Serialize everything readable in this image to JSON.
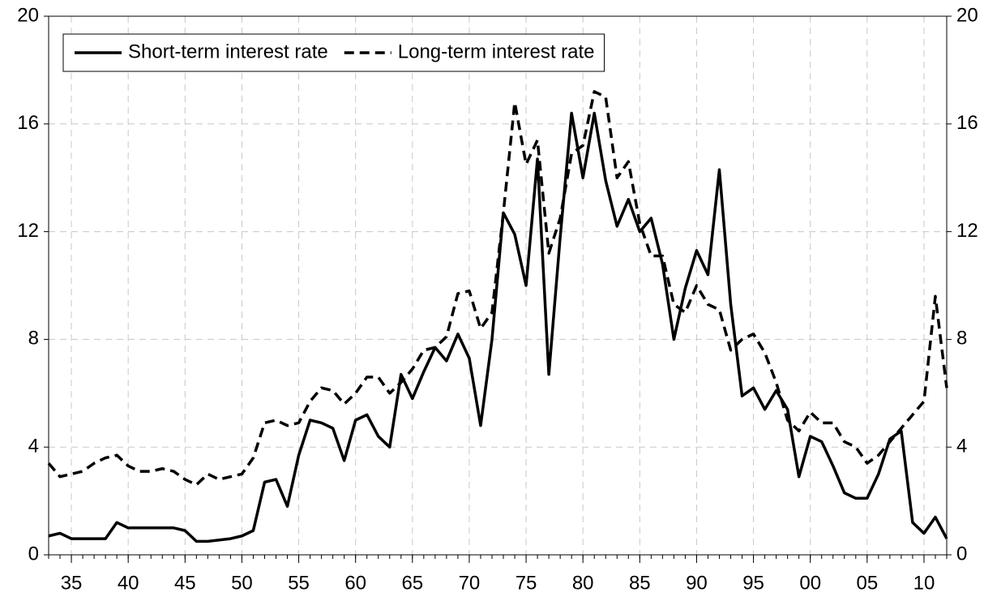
{
  "chart_data": {
    "type": "line",
    "x": [
      1933,
      1934,
      1935,
      1936,
      1937,
      1938,
      1939,
      1940,
      1941,
      1942,
      1943,
      1944,
      1945,
      1946,
      1947,
      1948,
      1949,
      1950,
      1951,
      1952,
      1953,
      1954,
      1955,
      1956,
      1957,
      1958,
      1959,
      1960,
      1961,
      1962,
      1963,
      1964,
      1965,
      1966,
      1967,
      1968,
      1969,
      1970,
      1971,
      1972,
      1973,
      1974,
      1975,
      1976,
      1977,
      1978,
      1979,
      1980,
      1981,
      1982,
      1983,
      1984,
      1985,
      1986,
      1987,
      1988,
      1989,
      1990,
      1991,
      1992,
      1993,
      1994,
      1995,
      1996,
      1997,
      1998,
      1999,
      2000,
      2001,
      2002,
      2003,
      2004,
      2005,
      2006,
      2007,
      2008,
      2009,
      2010,
      2011,
      2012
    ],
    "series": [
      {
        "name": "Short-term interest rate",
        "color": "#000000",
        "dash": "solid",
        "values": [
          0.7,
          0.8,
          0.6,
          0.6,
          0.6,
          0.6,
          1.2,
          1.0,
          1.0,
          1.0,
          1.0,
          1.0,
          0.9,
          0.5,
          0.5,
          0.55,
          0.6,
          0.7,
          0.9,
          2.7,
          2.8,
          1.8,
          3.7,
          5.0,
          4.9,
          4.7,
          3.5,
          5.0,
          5.2,
          4.4,
          4.0,
          6.7,
          5.8,
          6.8,
          7.7,
          7.2,
          8.2,
          7.3,
          4.8,
          8.0,
          12.7,
          11.9,
          10.0,
          14.7,
          6.7,
          11.8,
          16.4,
          14.0,
          16.4,
          13.9,
          12.2,
          13.2,
          12.0,
          12.5,
          10.8,
          8.0,
          9.9,
          11.3,
          10.4,
          14.3,
          9.3,
          5.9,
          6.2,
          5.4,
          6.1,
          5.4,
          2.9,
          4.4,
          4.2,
          3.3,
          2.3,
          2.1,
          2.1,
          3.0,
          4.3,
          4.6,
          1.2,
          0.8,
          1.4,
          0.6
        ]
      },
      {
        "name": "Long-term interest rate",
        "color": "#000000",
        "dash": "dashed",
        "values": [
          3.4,
          2.9,
          3.0,
          3.1,
          3.4,
          3.6,
          3.7,
          3.3,
          3.1,
          3.1,
          3.2,
          3.1,
          2.8,
          2.6,
          3.0,
          2.8,
          2.9,
          3.0,
          3.6,
          4.9,
          5.0,
          4.8,
          4.9,
          5.7,
          6.2,
          6.1,
          5.6,
          6.0,
          6.6,
          6.6,
          6.0,
          6.4,
          6.9,
          7.6,
          7.7,
          8.1,
          9.7,
          9.8,
          8.4,
          9.0,
          12.7,
          16.8,
          14.5,
          15.4,
          11.2,
          12.5,
          14.9,
          15.2,
          17.2,
          17.0,
          14.0,
          14.6,
          12.3,
          11.1,
          11.1,
          9.3,
          9.0,
          10.0,
          9.3,
          9.1,
          7.6,
          8.0,
          8.2,
          7.5,
          6.4,
          5.0,
          4.6,
          5.3,
          4.9,
          4.9,
          4.2,
          4.0,
          3.4,
          3.7,
          4.2,
          4.7,
          5.2,
          5.7,
          9.6,
          6.2
        ]
      }
    ],
    "xlim": [
      1933,
      2012
    ],
    "xticks": [
      {
        "value": 1935,
        "label": "35"
      },
      {
        "value": 1940,
        "label": "40"
      },
      {
        "value": 1945,
        "label": "45"
      },
      {
        "value": 1950,
        "label": "50"
      },
      {
        "value": 1955,
        "label": "55"
      },
      {
        "value": 1960,
        "label": "60"
      },
      {
        "value": 1965,
        "label": "65"
      },
      {
        "value": 1970,
        "label": "70"
      },
      {
        "value": 1975,
        "label": "75"
      },
      {
        "value": 1980,
        "label": "80"
      },
      {
        "value": 1985,
        "label": "85"
      },
      {
        "value": 1990,
        "label": "90"
      },
      {
        "value": 1995,
        "label": "95"
      },
      {
        "value": 2000,
        "label": "00"
      },
      {
        "value": 2005,
        "label": "05"
      },
      {
        "value": 2010,
        "label": "10"
      }
    ],
    "ylim": [
      0,
      20
    ],
    "yticks": [
      0,
      4,
      8,
      12,
      16,
      20
    ],
    "grid": true,
    "legend": "top-left"
  }
}
